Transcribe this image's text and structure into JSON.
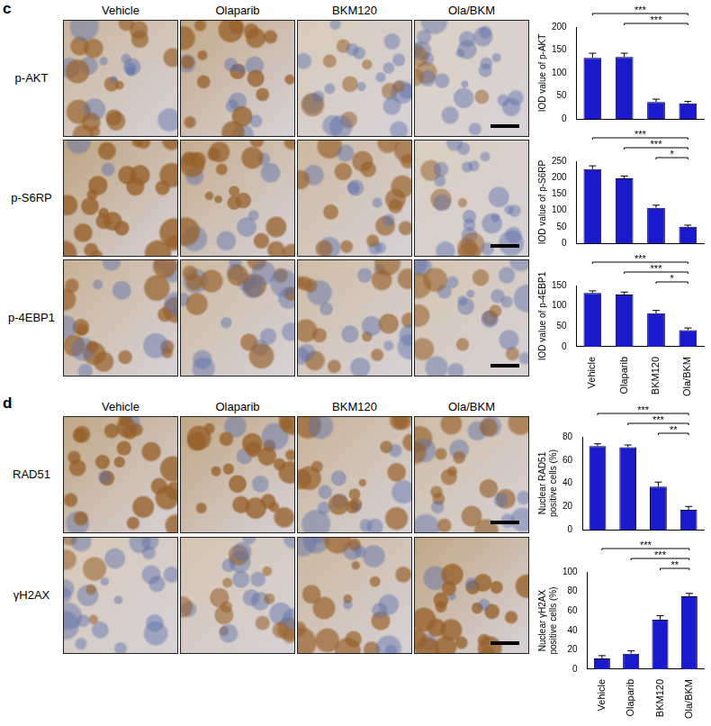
{
  "figure": {
    "panels": [
      {
        "label": "c",
        "columns": [
          "Vehicle",
          "Olaparib",
          "BKM120",
          "Ola/BKM"
        ],
        "rows": [
          "p-AKT",
          "p-S6RP",
          "p-4EBP1"
        ]
      },
      {
        "label": "d",
        "columns": [
          "Vehicle",
          "Olaparib",
          "BKM120",
          "Ola/BKM"
        ],
        "rows": [
          "RAD51",
          "γH2AX"
        ]
      }
    ]
  },
  "chart_data": [
    {
      "type": "bar",
      "y_label": "IOD value of p-AKT",
      "categories": [
        "Vehicle",
        "Olaparib",
        "BKM120",
        "Ola/BKM"
      ],
      "values": [
        133,
        135,
        37,
        34
      ],
      "errors": [
        10,
        8,
        6,
        4
      ],
      "color": "#1a1acc",
      "ylim": [
        0,
        200
      ],
      "yticks": [
        0,
        50,
        100,
        150,
        200
      ],
      "grid": false,
      "tick_labels": "y",
      "annotations": [
        {
          "from": "Vehicle",
          "to": "Ola/BKM",
          "label": "***"
        },
        {
          "from": "Olaparib",
          "to": "Ola/BKM",
          "label": "***"
        }
      ]
    },
    {
      "type": "bar",
      "y_label": "IOD value of p-S6RP",
      "categories": [
        "Vehicle",
        "Olaparib",
        "BKM120",
        "Ola/BKM"
      ],
      "values": [
        226,
        198,
        108,
        50
      ],
      "errors": [
        10,
        7,
        8,
        5
      ],
      "color": "#1a1acc",
      "ylim": [
        0,
        250
      ],
      "yticks": [
        0,
        50,
        100,
        150,
        200,
        250
      ],
      "grid": false,
      "tick_labels": "y",
      "annotations": [
        {
          "from": "Vehicle",
          "to": "Ola/BKM",
          "label": "***"
        },
        {
          "from": "Olaparib",
          "to": "Ola/BKM",
          "label": "***"
        },
        {
          "from": "BKM120",
          "to": "Ola/BKM",
          "label": "*"
        }
      ]
    },
    {
      "type": "bar",
      "y_label": "IOD value of p-4EBP1",
      "categories": [
        "Vehicle",
        "Olaparib",
        "BKM120",
        "Ola/BKM"
      ],
      "values": [
        132,
        128,
        82,
        41
      ],
      "errors": [
        5,
        6,
        7,
        5
      ],
      "color": "#1a1acc",
      "ylim": [
        0,
        150
      ],
      "yticks": [
        0,
        50,
        100,
        150
      ],
      "grid": false,
      "annotations": [
        {
          "from": "Vehicle",
          "to": "Ola/BKM",
          "label": "***"
        },
        {
          "from": "Olaparib",
          "to": "Ola/BKM",
          "label": "***"
        },
        {
          "from": "BKM120",
          "to": "Ola/BKM",
          "label": "*"
        }
      ]
    },
    {
      "type": "bar",
      "y_label": [
        "Nuclear RAD51",
        "positive cells (%)"
      ],
      "categories": [
        "Vehicle",
        "Olaparib",
        "BKM120",
        "Ola/BKM"
      ],
      "values": [
        72,
        71,
        37,
        17
      ],
      "errors": [
        2,
        2,
        4,
        3
      ],
      "color": "#1a1acc",
      "ylim": [
        0,
        80
      ],
      "yticks": [
        0,
        20,
        40,
        60,
        80
      ],
      "grid": false,
      "tick_labels": "y",
      "annotations": [
        {
          "from": "Vehicle",
          "to": "Ola/BKM",
          "label": "***"
        },
        {
          "from": "Olaparib",
          "to": "Ola/BKM",
          "label": "***"
        },
        {
          "from": "BKM120",
          "to": "Ola/BKM",
          "label": "**"
        }
      ]
    },
    {
      "type": "bar",
      "y_label": [
        "Nuclear γH2AX",
        "positive cells (%)"
      ],
      "categories": [
        "Vehicle",
        "Olaparib",
        "BKM120",
        "Ola/BKM"
      ],
      "values": [
        11,
        16,
        51,
        75
      ],
      "errors": [
        3,
        3,
        4,
        3
      ],
      "color": "#1a1acc",
      "ylim": [
        0,
        100
      ],
      "yticks": [
        0,
        20,
        40,
        60,
        80,
        100
      ],
      "grid": false,
      "annotations": [
        {
          "from": "Vehicle",
          "to": "Ola/BKM",
          "label": "***"
        },
        {
          "from": "Olaparib",
          "to": "Ola/BKM",
          "label": "***"
        },
        {
          "from": "BKM120",
          "to": "Ola/BKM",
          "label": "**"
        }
      ]
    }
  ]
}
